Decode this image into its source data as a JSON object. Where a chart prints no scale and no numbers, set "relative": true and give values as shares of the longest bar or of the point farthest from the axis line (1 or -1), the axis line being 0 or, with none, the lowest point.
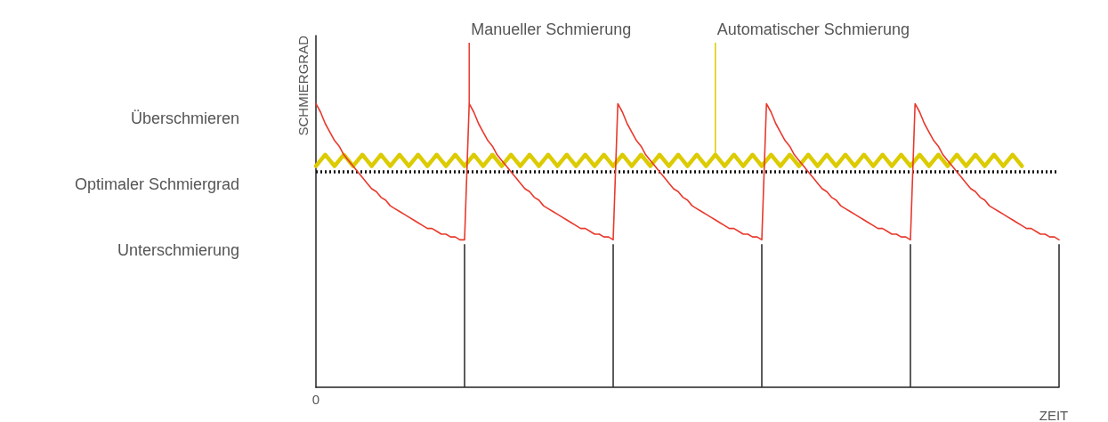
{
  "chart_data": {
    "type": "line",
    "relative": true,
    "ylabel": "SCHMIERGRAD",
    "xlabel": "ZEIT",
    "grid": false,
    "marker": "none",
    "categories": [
      null,
      null,
      null,
      null,
      null,
      null,
      null,
      null,
      null,
      null,
      null,
      null,
      null,
      null,
      null,
      null,
      null,
      null,
      null,
      null,
      null,
      null,
      null,
      null,
      null,
      null,
      null,
      null,
      null,
      null,
      null,
      null,
      null,
      null,
      null,
      null,
      null,
      null,
      null,
      null,
      null,
      null,
      null,
      null,
      null,
      null,
      null,
      null,
      null,
      null,
      null,
      null,
      null,
      null,
      null,
      null,
      null,
      null,
      null,
      null,
      null,
      null,
      null,
      null,
      null,
      null,
      null,
      null,
      null,
      null,
      null,
      null,
      null,
      null,
      null,
      null,
      null,
      null,
      null,
      null,
      null,
      null,
      null,
      null,
      null,
      null,
      null,
      null,
      null,
      null,
      null,
      null,
      null,
      null,
      null,
      null,
      null,
      null,
      null,
      null,
      null,
      null,
      null,
      null,
      null,
      null,
      null,
      null,
      null,
      null,
      null,
      null,
      null,
      null,
      null,
      null,
      null,
      null,
      null,
      null,
      null,
      null,
      null,
      null,
      null,
      null,
      null,
      null,
      null,
      null,
      null,
      null,
      null,
      null,
      null,
      null,
      null,
      null,
      null,
      null,
      null,
      null,
      null,
      null,
      null,
      null,
      null,
      null,
      null,
      null,
      null,
      null,
      null,
      null,
      null,
      null,
      null,
      null,
      null,
      null,
      null
    ],
    "series": [
      {
        "name": "Manueller Schmierung",
        "color": "#e8392c",
        "values": [
          1,
          0.97,
          0.93,
          0.9,
          0.87,
          0.85,
          0.82,
          0.8,
          0.78,
          0.76,
          0.74,
          0.72,
          0.7,
          0.69,
          0.67,
          0.66,
          0.64,
          0.63,
          0.62,
          0.61,
          0.6,
          0.59,
          0.58,
          0.57,
          0.56,
          0.56,
          0.55,
          0.54,
          0.54,
          0.53,
          0.53,
          0.52,
          0.52,
          1,
          0.97,
          0.93,
          0.9,
          0.87,
          0.85,
          0.82,
          0.8,
          0.78,
          0.76,
          0.74,
          0.72,
          0.7,
          0.69,
          0.67,
          0.66,
          0.64,
          0.63,
          0.62,
          0.61,
          0.6,
          0.59,
          0.58,
          0.57,
          0.56,
          0.56,
          0.55,
          0.54,
          0.54,
          0.53,
          0.53,
          0.52,
          1,
          0.97,
          0.93,
          0.9,
          0.87,
          0.85,
          0.82,
          0.8,
          0.78,
          0.76,
          0.74,
          0.72,
          0.7,
          0.69,
          0.67,
          0.66,
          0.64,
          0.63,
          0.62,
          0.61,
          0.6,
          0.59,
          0.58,
          0.57,
          0.56,
          0.56,
          0.55,
          0.54,
          0.54,
          0.53,
          0.53,
          0.52,
          1,
          0.97,
          0.93,
          0.9,
          0.87,
          0.85,
          0.82,
          0.8,
          0.78,
          0.76,
          0.74,
          0.72,
          0.7,
          0.69,
          0.67,
          0.66,
          0.64,
          0.63,
          0.62,
          0.61,
          0.6,
          0.59,
          0.58,
          0.57,
          0.56,
          0.56,
          0.55,
          0.54,
          0.54,
          0.53,
          0.53,
          0.52,
          1,
          0.97,
          0.93,
          0.9,
          0.87,
          0.85,
          0.82,
          0.8,
          0.78,
          0.76,
          0.74,
          0.72,
          0.7,
          0.69,
          0.67,
          0.66,
          0.64,
          0.63,
          0.62,
          0.61,
          0.6,
          0.59,
          0.58,
          0.57,
          0.56,
          0.56,
          0.55,
          0.54,
          0.54,
          0.53,
          0.53,
          0.52
        ]
      },
      {
        "name": "Automatischer Schmierung",
        "color": "#dccb00",
        "values": [
          0.78,
          0.8,
          0.82,
          0.8,
          0.78,
          0.8,
          0.82,
          0.8,
          0.78,
          0.8,
          0.82,
          0.8,
          0.78,
          0.8,
          0.82,
          0.8,
          0.78,
          0.8,
          0.82,
          0.8,
          0.78,
          0.8,
          0.82,
          0.8,
          0.78,
          0.8,
          0.82,
          0.8,
          0.78,
          0.8,
          0.82,
          0.8,
          0.78,
          0.8,
          0.82,
          0.8,
          0.78,
          0.8,
          0.82,
          0.8,
          0.78,
          0.8,
          0.82,
          0.8,
          0.78,
          0.8,
          0.82,
          0.8,
          0.78,
          0.8,
          0.82,
          0.8,
          0.78,
          0.8,
          0.82,
          0.8,
          0.78,
          0.8,
          0.82,
          0.8,
          0.78,
          0.8,
          0.82,
          0.8,
          0.78,
          0.8,
          0.82,
          0.8,
          0.78,
          0.8,
          0.82,
          0.8,
          0.78,
          0.8,
          0.82,
          0.8,
          0.78,
          0.8,
          0.82,
          0.8,
          0.78,
          0.8,
          0.82,
          0.8,
          0.78,
          0.8,
          0.82,
          0.8,
          0.78,
          0.8,
          0.82,
          0.8,
          0.78,
          0.8,
          0.82,
          0.8,
          0.78,
          0.8,
          0.82,
          0.8,
          0.78,
          0.8,
          0.82,
          0.8,
          0.78,
          0.8,
          0.82,
          0.8,
          0.78,
          0.8,
          0.82,
          0.8,
          0.78,
          0.8,
          0.82,
          0.8,
          0.78,
          0.8,
          0.82,
          0.8,
          0.78,
          0.8,
          0.82,
          0.8,
          0.78,
          0.8,
          0.82,
          0.8,
          0.78,
          0.8,
          0.82,
          0.8,
          0.78,
          0.8,
          0.82,
          0.8,
          0.78,
          0.8,
          0.82,
          0.8,
          0.78,
          0.8,
          0.82,
          0.8,
          0.78,
          0.8,
          0.82,
          0.8,
          0.78,
          0.8,
          0.82,
          0.8,
          0.78,
          null,
          null,
          null,
          null,
          null,
          null,
          null,
          null
        ]
      }
    ],
    "ref_lines": [
      {
        "axis": "y",
        "value": 0.76,
        "color": "#111111",
        "line_style": "dotted"
      }
    ],
    "annotations": [
      "Überschmieren",
      "Optimaler Schmiergrad",
      "Unterschmierung",
      "0"
    ]
  }
}
